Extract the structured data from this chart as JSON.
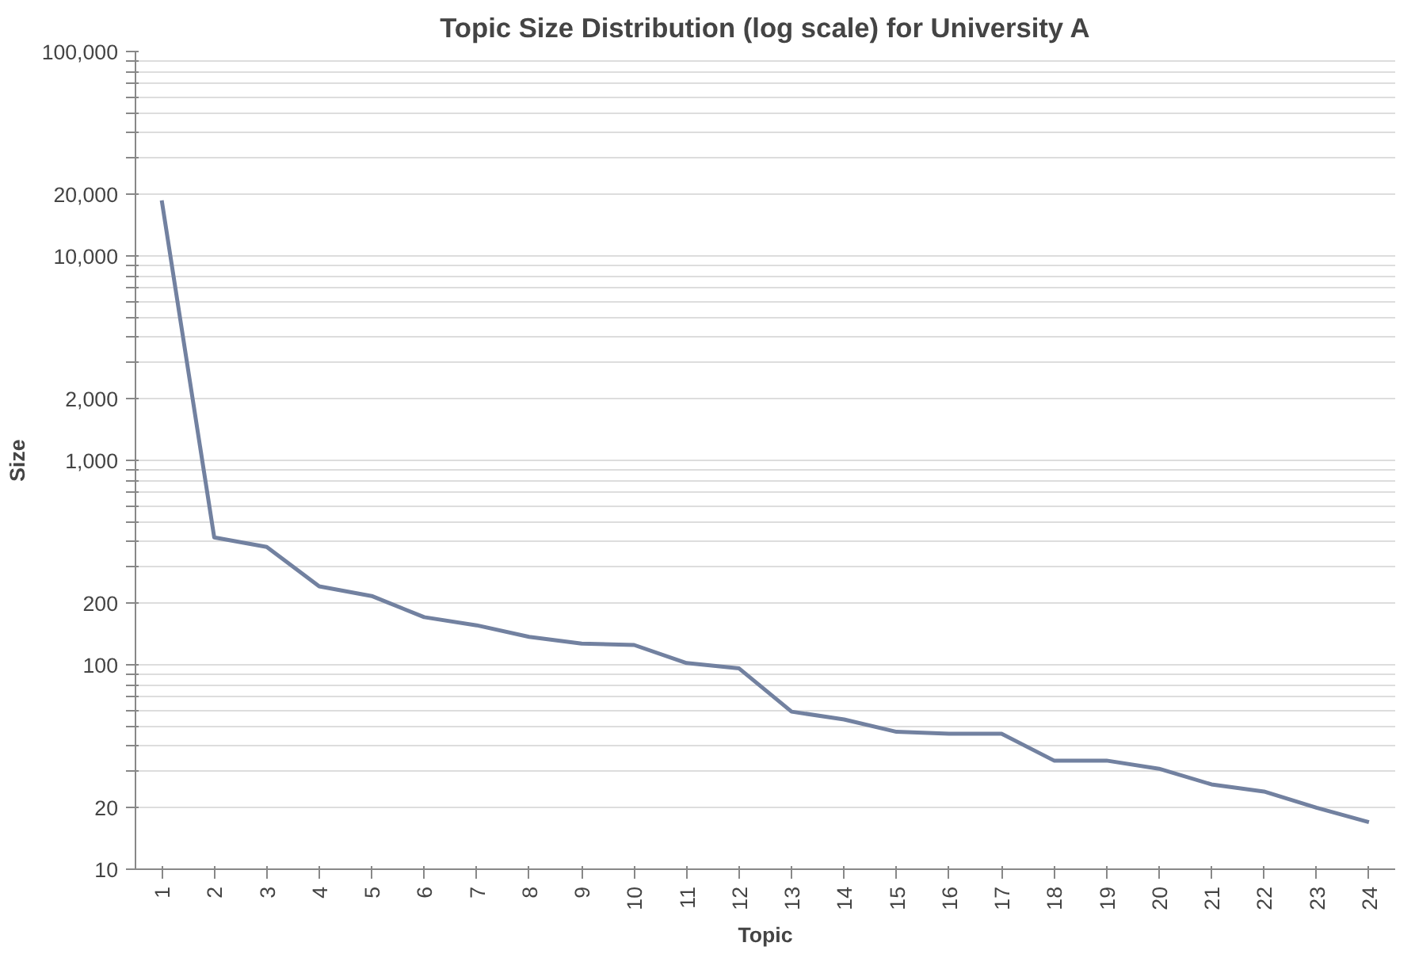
{
  "chart_data": {
    "type": "line",
    "title": "Topic Size Distribution (log scale) for University A",
    "xlabel": "Topic",
    "ylabel": "Size",
    "categories": [
      "1",
      "2",
      "3",
      "4",
      "5",
      "6",
      "7",
      "8",
      "9",
      "10",
      "11",
      "12",
      "13",
      "14",
      "15",
      "16",
      "17",
      "18",
      "19",
      "20",
      "21",
      "22",
      "23",
      "24"
    ],
    "series": [
      {
        "color": "#7281a0",
        "values": [
          18700,
          420,
          377,
          242,
          217,
          171,
          156,
          137,
          127,
          125,
          102,
          96,
          59,
          54,
          47,
          46,
          46,
          34,
          34,
          31,
          26,
          24,
          20,
          17
        ]
      }
    ],
    "log": "y",
    "ylim": [
      10,
      100000
    ],
    "yticks": [
      10,
      20,
      {
        "value": 30,
        "label": null
      },
      {
        "value": 40,
        "label": null
      },
      {
        "value": 50,
        "label": null
      },
      {
        "value": 60,
        "label": null
      },
      {
        "value": 70,
        "label": null
      },
      {
        "value": 80,
        "label": null
      },
      {
        "value": 90,
        "label": null
      },
      100,
      200,
      {
        "value": 300,
        "label": null
      },
      {
        "value": 400,
        "label": null
      },
      {
        "value": 500,
        "label": null
      },
      {
        "value": 600,
        "label": null
      },
      {
        "value": 700,
        "label": null
      },
      {
        "value": 800,
        "label": null
      },
      {
        "value": 900,
        "label": null
      },
      {
        "value": 1000,
        "label": "1,000"
      },
      {
        "value": 2000,
        "label": "2,000"
      },
      {
        "value": 3000,
        "label": null
      },
      {
        "value": 4000,
        "label": null
      },
      {
        "value": 5000,
        "label": null
      },
      {
        "value": 6000,
        "label": null
      },
      {
        "value": 7000,
        "label": null
      },
      {
        "value": 8000,
        "label": null
      },
      {
        "value": 9000,
        "label": null
      },
      {
        "value": 10000,
        "label": "10,000"
      },
      {
        "value": 20000,
        "label": "20,000"
      },
      {
        "value": 30000,
        "label": null
      },
      {
        "value": 40000,
        "label": null
      },
      {
        "value": 50000,
        "label": null
      },
      {
        "value": 60000,
        "label": null
      },
      {
        "value": 70000,
        "label": null
      },
      {
        "value": 80000,
        "label": null
      },
      {
        "value": 90000,
        "label": null
      },
      {
        "value": 100000,
        "label": "100,000"
      }
    ],
    "grid": "y",
    "marker": "none",
    "line_style": "solid"
  }
}
